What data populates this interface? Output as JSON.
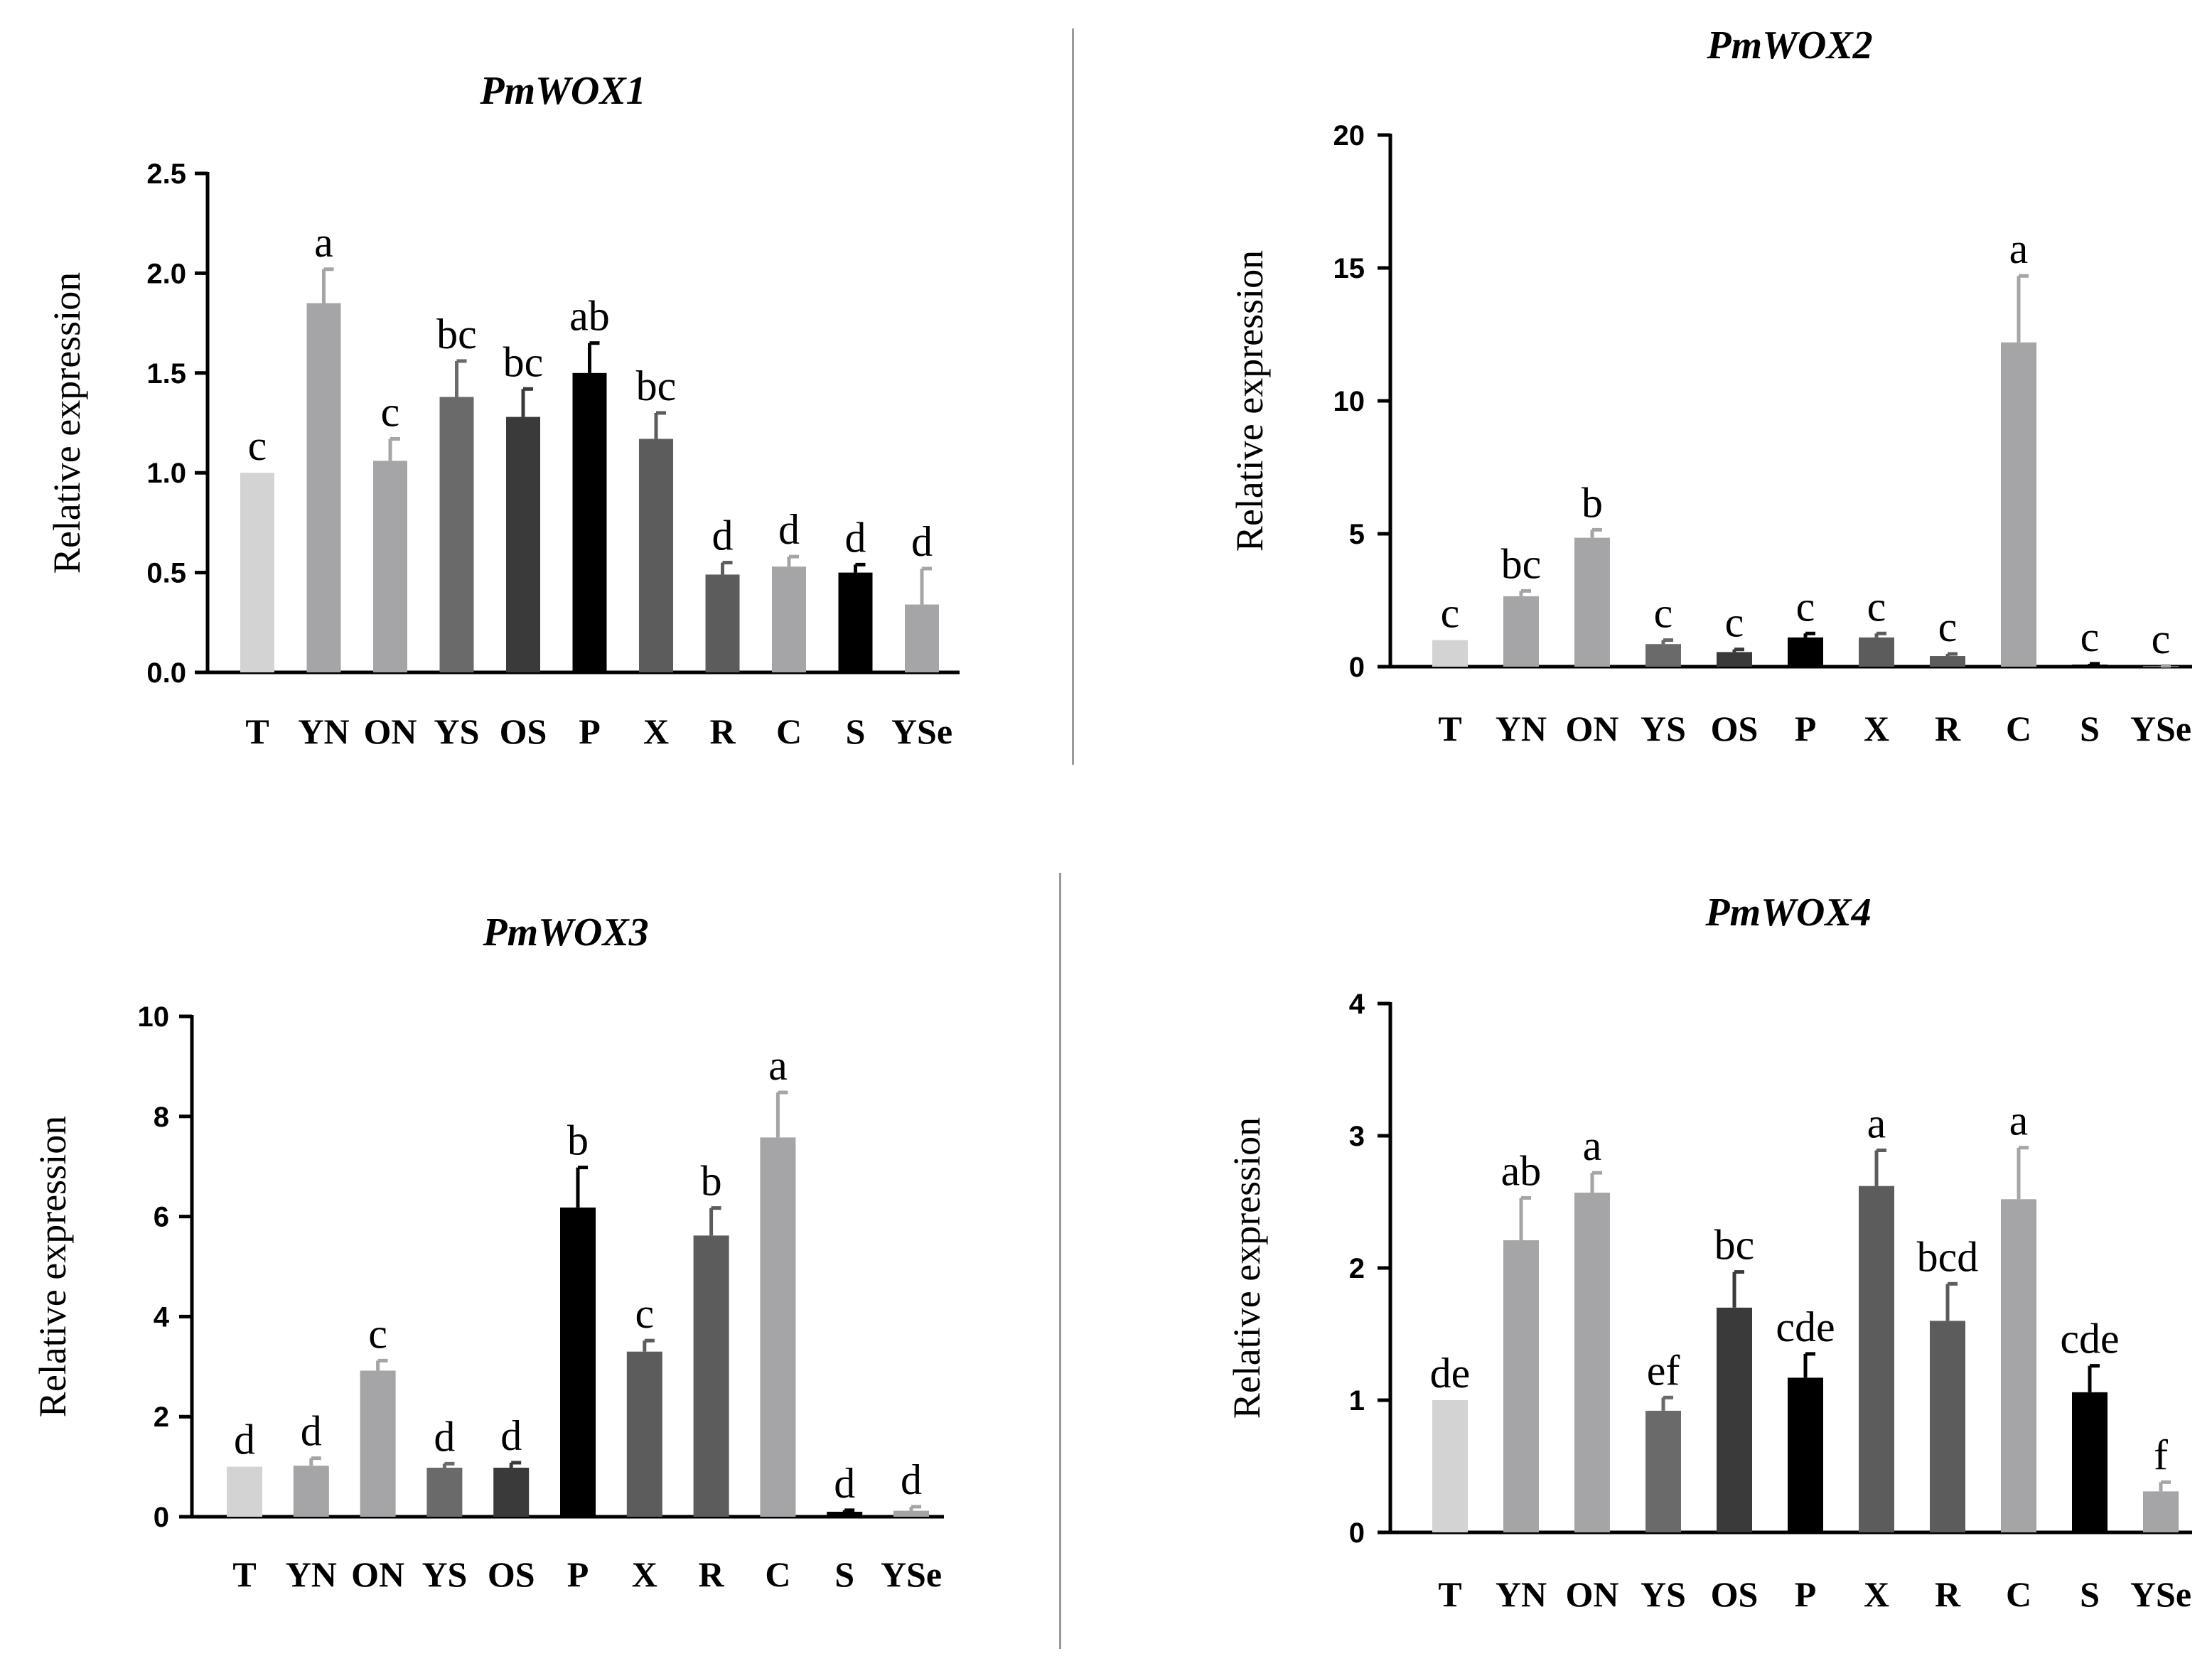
{
  "categories": [
    "T",
    "YN",
    "ON",
    "YS",
    "OS",
    "P",
    "X",
    "R",
    "C",
    "S",
    "YSe"
  ],
  "bar_colors": [
    "#d3d3d3",
    "#a5a5a8",
    "#a5a5a8",
    "#6a6a6a",
    "#3a3a3a",
    "#000000",
    "#5c5c5c",
    "#5c5c5c",
    "#a5a5a8",
    "#000000",
    "#a5a5a8"
  ],
  "chart_data": [
    {
      "type": "bar",
      "title": "PmWOX1",
      "ylabel": "Relative expression",
      "xlabel": "",
      "categories": [
        "T",
        "YN",
        "ON",
        "YS",
        "OS",
        "P",
        "X",
        "R",
        "C",
        "S",
        "YSe"
      ],
      "values": [
        1.0,
        1.85,
        1.06,
        1.38,
        1.28,
        1.5,
        1.17,
        0.49,
        0.53,
        0.5,
        0.34
      ],
      "errors": [
        0,
        0.17,
        0.11,
        0.18,
        0.14,
        0.15,
        0.13,
        0.06,
        0.05,
        0.04,
        0.18
      ],
      "significance": [
        "c",
        "a",
        "c",
        "bc",
        "bc",
        "ab",
        "bc",
        "d",
        "d",
        "d",
        "d"
      ],
      "ylim": [
        0,
        2.5
      ],
      "yticks": [
        "0.0",
        "0.5",
        "1.0",
        "1.5",
        "2.0",
        "2.5"
      ]
    },
    {
      "type": "bar",
      "title": "PmWOX2",
      "ylabel": "Relative expression",
      "xlabel": "",
      "categories": [
        "T",
        "YN",
        "ON",
        "YS",
        "OS",
        "P",
        "X",
        "R",
        "C",
        "S",
        "YSe"
      ],
      "values": [
        1.0,
        2.65,
        4.85,
        0.85,
        0.55,
        1.1,
        1.1,
        0.4,
        12.2,
        0.08,
        0.02
      ],
      "errors": [
        0,
        0.2,
        0.3,
        0.15,
        0.1,
        0.15,
        0.15,
        0.08,
        2.5,
        0.03,
        0.01
      ],
      "significance": [
        "c",
        "bc",
        "b",
        "c",
        "c",
        "c",
        "c",
        "c",
        "a",
        "c",
        "c"
      ],
      "ylim": [
        0,
        20
      ],
      "yticks": [
        "0",
        "5",
        "10",
        "15",
        "20"
      ]
    },
    {
      "type": "bar",
      "title": "PmWOX3",
      "ylabel": "Relative expression",
      "xlabel": "",
      "categories": [
        "T",
        "YN",
        "ON",
        "YS",
        "OS",
        "P",
        "X",
        "R",
        "C",
        "S",
        "YSe"
      ],
      "values": [
        1.0,
        1.02,
        2.92,
        0.98,
        0.98,
        6.18,
        3.3,
        5.62,
        7.58,
        0.1,
        0.12
      ],
      "errors": [
        0,
        0.15,
        0.2,
        0.08,
        0.1,
        0.8,
        0.22,
        0.55,
        0.9,
        0.03,
        0.08
      ],
      "significance": [
        "d",
        "d",
        "c",
        "d",
        "d",
        "b",
        "c",
        "b",
        "a",
        "d",
        "d"
      ],
      "ylim": [
        0,
        10
      ],
      "yticks": [
        "0",
        "2",
        "4",
        "6",
        "8",
        "10"
      ]
    },
    {
      "type": "bar",
      "title": "PmWOX4",
      "ylabel": "Relative expression",
      "xlabel": "",
      "categories": [
        "T",
        "YN",
        "ON",
        "YS",
        "OS",
        "P",
        "X",
        "R",
        "C",
        "S",
        "YSe"
      ],
      "values": [
        1.0,
        2.21,
        2.57,
        0.92,
        1.7,
        1.17,
        2.62,
        1.6,
        2.52,
        1.06,
        0.31
      ],
      "errors": [
        0,
        0.32,
        0.15,
        0.1,
        0.27,
        0.18,
        0.27,
        0.28,
        0.39,
        0.2,
        0.07
      ],
      "significance": [
        "de",
        "ab",
        "a",
        "ef",
        "bc",
        "cde",
        "a",
        "bcd",
        "a",
        "cde",
        "f"
      ],
      "ylim": [
        0,
        4
      ],
      "yticks": [
        "0",
        "1",
        "2",
        "3",
        "4"
      ]
    }
  ]
}
